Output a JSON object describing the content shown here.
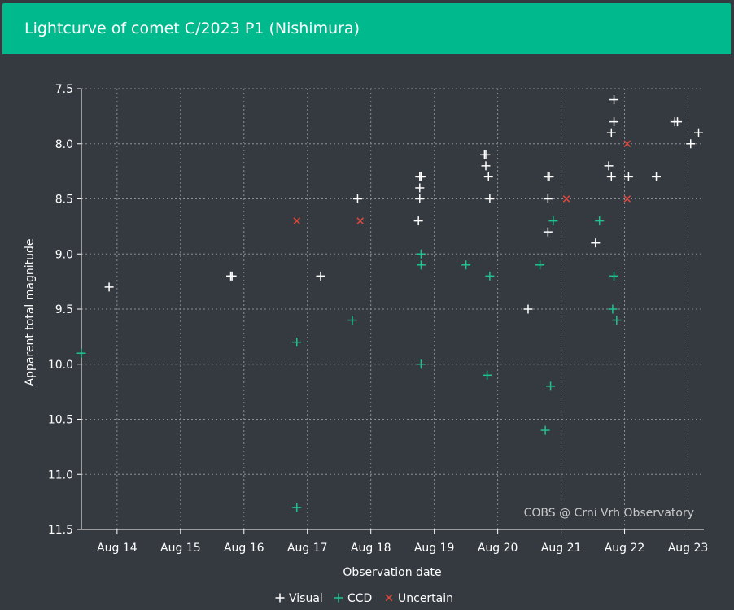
{
  "header": {
    "title": "Lightcurve of comet C/2023 P1 (Nishimura)"
  },
  "colors": {
    "header_bg": "#00b98c",
    "background": "#353a40",
    "visual": "#ffffff",
    "ccd": "#22c28f",
    "uncertain": "#e0483c",
    "grid": "#8a8f94"
  },
  "chart_data": {
    "type": "scatter",
    "xlabel": "Observation date",
    "ylabel": "Apparent total magnitude",
    "credit": "COBS @ Crni Vrh Observatory",
    "xlim": [
      "2023-08-13 10:30",
      "2023-08-23 06:00"
    ],
    "ylim": [
      11.5,
      7.5
    ],
    "y_inverted": true,
    "grid": true,
    "legend_position": "bottom",
    "x_ticks": [
      "Aug 14",
      "Aug 15",
      "Aug 16",
      "Aug 17",
      "Aug 18",
      "Aug 19",
      "Aug 20",
      "Aug 21",
      "Aug 22",
      "Aug 23"
    ],
    "y_ticks": [
      "7.5",
      "8.0",
      "8.5",
      "9.0",
      "9.5",
      "10.0",
      "10.5",
      "11.0",
      "11.5"
    ],
    "series": [
      {
        "name": "Visual",
        "marker": "plus",
        "points": [
          {
            "x": "2023-08-13 21:00",
            "y": 9.3
          },
          {
            "x": "2023-08-15 19:00",
            "y": 9.2
          },
          {
            "x": "2023-08-15 19:30",
            "y": 9.2
          },
          {
            "x": "2023-08-17 05:00",
            "y": 9.2
          },
          {
            "x": "2023-08-17 19:00",
            "y": 8.5
          },
          {
            "x": "2023-08-18 18:00",
            "y": 8.7
          },
          {
            "x": "2023-08-18 18:30",
            "y": 8.5
          },
          {
            "x": "2023-08-18 18:30",
            "y": 8.4
          },
          {
            "x": "2023-08-18 18:30",
            "y": 8.3
          },
          {
            "x": "2023-08-18 19:00",
            "y": 8.3
          },
          {
            "x": "2023-08-19 19:00",
            "y": 8.1
          },
          {
            "x": "2023-08-19 19:30",
            "y": 8.1
          },
          {
            "x": "2023-08-19 19:30",
            "y": 8.2
          },
          {
            "x": "2023-08-19 20:30",
            "y": 8.3
          },
          {
            "x": "2023-08-19 21:00",
            "y": 8.5
          },
          {
            "x": "2023-08-20 11:30",
            "y": 9.5
          },
          {
            "x": "2023-08-20 19:00",
            "y": 8.8
          },
          {
            "x": "2023-08-20 19:00",
            "y": 8.5
          },
          {
            "x": "2023-08-20 19:00",
            "y": 8.3
          },
          {
            "x": "2023-08-20 19:30",
            "y": 8.3
          },
          {
            "x": "2023-08-21 13:00",
            "y": 8.9
          },
          {
            "x": "2023-08-21 18:00",
            "y": 8.2
          },
          {
            "x": "2023-08-21 19:00",
            "y": 8.3
          },
          {
            "x": "2023-08-21 19:00",
            "y": 7.9
          },
          {
            "x": "2023-08-21 20:00",
            "y": 7.8
          },
          {
            "x": "2023-08-21 20:00",
            "y": 7.6
          },
          {
            "x": "2023-08-22 01:30",
            "y": 8.3
          },
          {
            "x": "2023-08-22 12:00",
            "y": 8.3
          },
          {
            "x": "2023-08-22 19:00",
            "y": 7.8
          },
          {
            "x": "2023-08-22 20:00",
            "y": 7.8
          },
          {
            "x": "2023-08-23 01:00",
            "y": 8.0
          },
          {
            "x": "2023-08-23 04:00",
            "y": 7.9
          }
        ]
      },
      {
        "name": "CCD",
        "marker": "plus",
        "points": [
          {
            "x": "2023-08-13 10:30",
            "y": 9.9
          },
          {
            "x": "2023-08-16 20:00",
            "y": 9.8
          },
          {
            "x": "2023-08-16 20:00",
            "y": 11.3
          },
          {
            "x": "2023-08-17 17:00",
            "y": 9.6
          },
          {
            "x": "2023-08-18 19:00",
            "y": 9.0
          },
          {
            "x": "2023-08-18 19:00",
            "y": 9.1
          },
          {
            "x": "2023-08-18 19:00",
            "y": 10.0
          },
          {
            "x": "2023-08-19 12:00",
            "y": 9.1
          },
          {
            "x": "2023-08-19 20:00",
            "y": 10.1
          },
          {
            "x": "2023-08-19 21:00",
            "y": 9.2
          },
          {
            "x": "2023-08-20 16:00",
            "y": 9.1
          },
          {
            "x": "2023-08-20 18:00",
            "y": 10.6
          },
          {
            "x": "2023-08-20 20:00",
            "y": 10.2
          },
          {
            "x": "2023-08-20 21:00",
            "y": 8.7
          },
          {
            "x": "2023-08-21 14:30",
            "y": 8.7
          },
          {
            "x": "2023-08-21 19:30",
            "y": 9.5
          },
          {
            "x": "2023-08-21 20:00",
            "y": 9.2
          },
          {
            "x": "2023-08-21 21:00",
            "y": 9.6
          }
        ]
      },
      {
        "name": "Uncertain",
        "marker": "cross",
        "points": [
          {
            "x": "2023-08-16 20:00",
            "y": 8.7
          },
          {
            "x": "2023-08-17 20:00",
            "y": 8.7
          },
          {
            "x": "2023-08-21 02:00",
            "y": 8.5
          },
          {
            "x": "2023-08-22 01:00",
            "y": 8.0
          },
          {
            "x": "2023-08-22 01:00",
            "y": 8.5
          }
        ]
      }
    ]
  }
}
